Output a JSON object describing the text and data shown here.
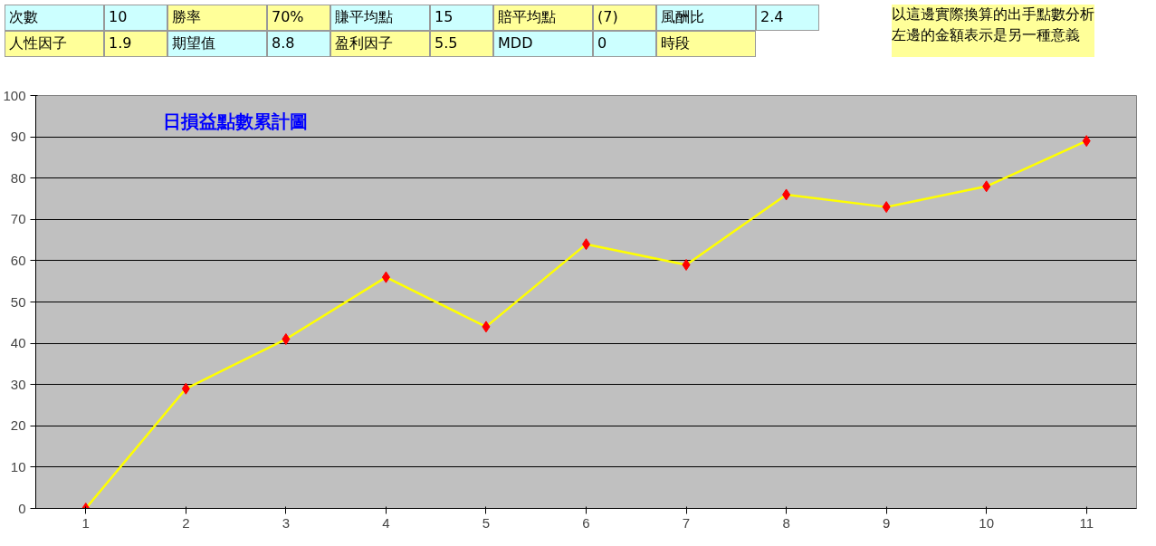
{
  "chart_data": {
    "type": "line",
    "title": "日損益點數累計圖",
    "categories": [
      "1",
      "2",
      "3",
      "4",
      "5",
      "6",
      "7",
      "8",
      "9",
      "10",
      "11"
    ],
    "series": [
      {
        "color": "#ffff00",
        "values": [
          0,
          29,
          41,
          56,
          44,
          64,
          59,
          76,
          73,
          78,
          89
        ]
      }
    ],
    "marker": "diamond",
    "line_style": "solid",
    "ylim": [
      0,
      100
    ],
    "yticks": [
      0,
      10,
      20,
      30,
      40,
      50,
      60,
      70,
      80,
      90,
      100
    ],
    "grid": "y",
    "annotations": [
      "次數",
      "10",
      "勝率",
      "70%",
      "賺平均點",
      "15",
      "賠平均點",
      "(7)",
      "風酬比",
      "2.4",
      "人性因子",
      "1.9",
      "期望值",
      "8.8",
      "盈利因子",
      "5.5",
      "MDD",
      "0",
      "時段",
      "以這邊實際換算的出手點數分析",
      "左邊的金額表示是另一種意義"
    ]
  }
}
